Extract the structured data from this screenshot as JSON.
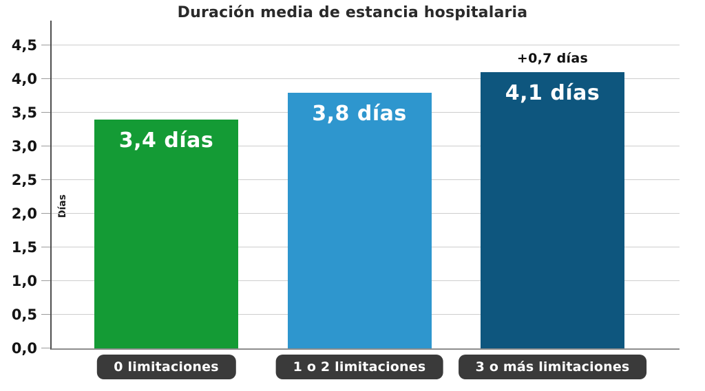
{
  "chart_data": {
    "type": "bar",
    "title": "Duración media de estancia hospitalaria",
    "xlabel": "",
    "ylabel": "Días",
    "categories": [
      "0 limitaciones",
      "1 o 2 limitaciones",
      "3 o más limitaciones"
    ],
    "values": [
      3.4,
      3.8,
      4.1
    ],
    "bar_labels": [
      "3,4 días",
      "3,8 días",
      "4,1 días"
    ],
    "bar_colors": [
      "#149b35",
      "#2e96ce",
      "#0e567e"
    ],
    "annotations": [
      {
        "bar_index": 2,
        "text": "+0,7 días"
      }
    ],
    "ylim": [
      0,
      4.5
    ],
    "ytick_step": 0.5,
    "ytick_labels": [
      "0,0",
      "0,5",
      "1,0",
      "1,5",
      "2,0",
      "2,5",
      "3,0",
      "3,5",
      "4,0",
      "4,5"
    ],
    "grid": true,
    "legend_position": "none",
    "colors": {
      "value_label": "#ffffff",
      "annotation_text": "#101010",
      "category_pill_background": "#3a3a3a",
      "category_pill_text": "#ffffff",
      "gridline": "#cdcdcd",
      "y_axis_line": "#4f4f4f",
      "baseline": "#8c8c8c"
    }
  }
}
